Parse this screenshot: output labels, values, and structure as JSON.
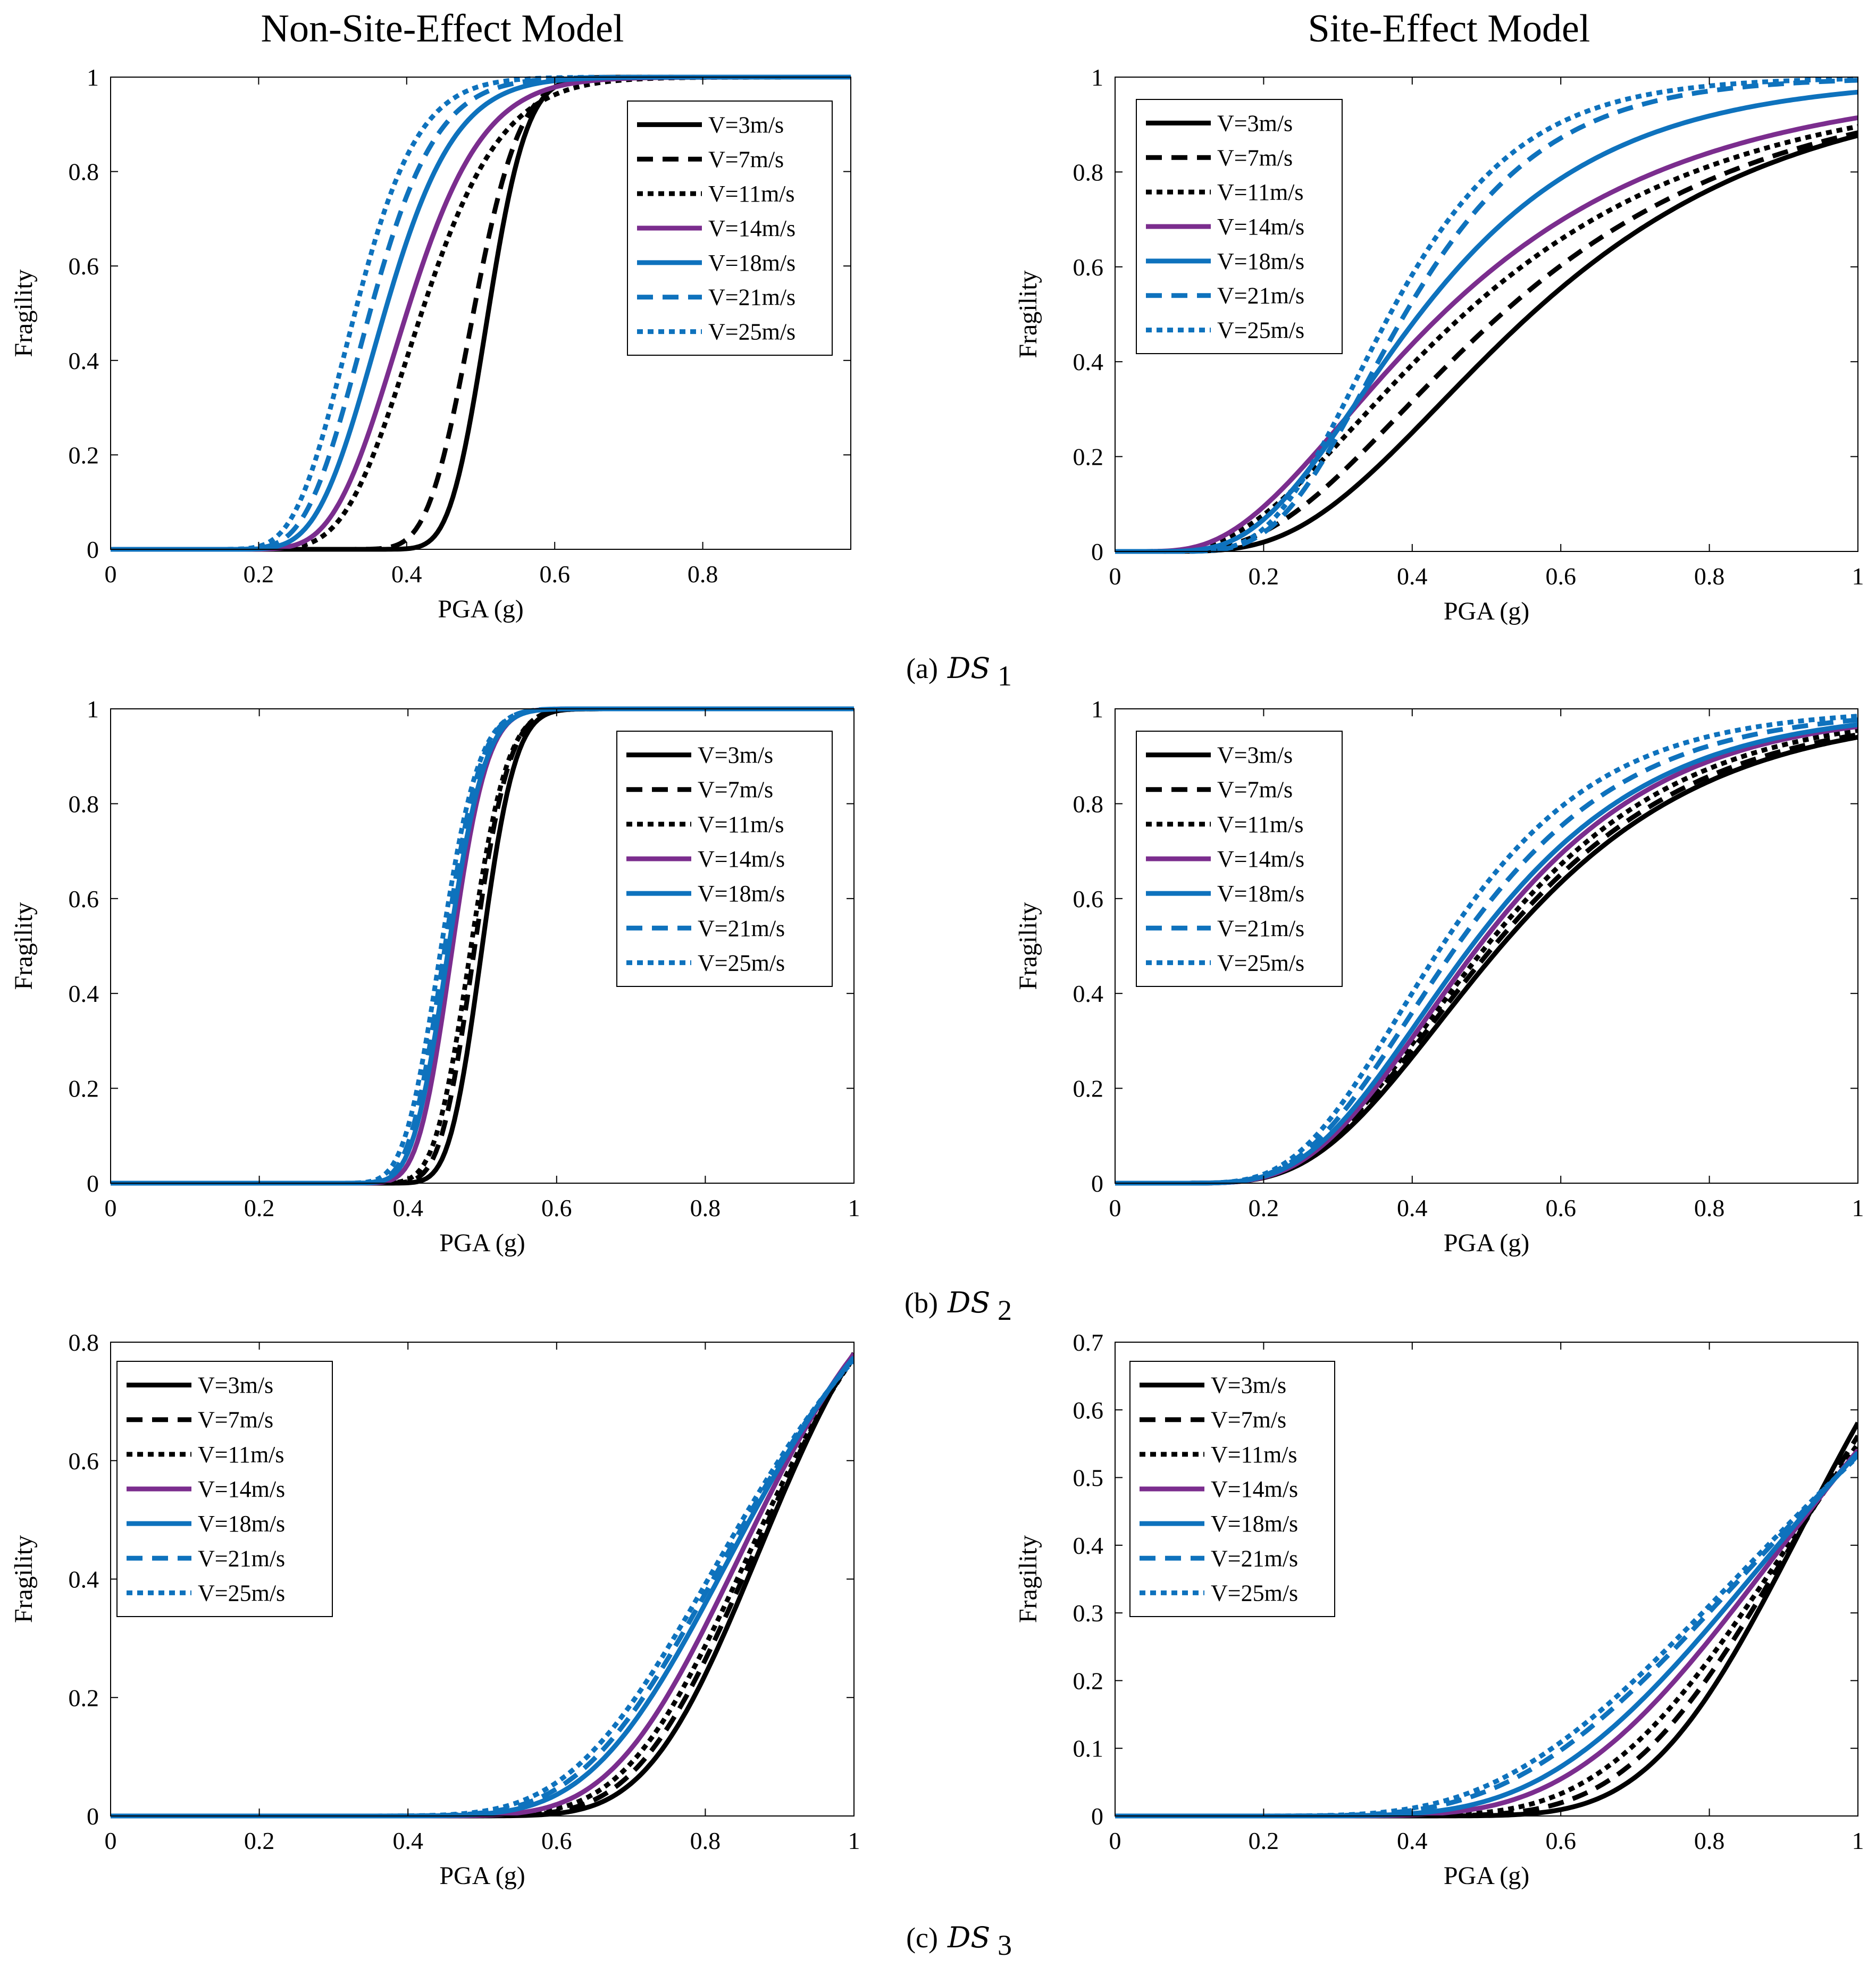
{
  "columns": [
    "Non-Site-Effect Model",
    "Site-Effect Model"
  ],
  "colors": {
    "black": "#000000",
    "purple": "#7B2D8E",
    "blue": "#0E72BD"
  },
  "captions": [
    {
      "letter": "(a)",
      "ds": "DS",
      "sub": "1"
    },
    {
      "letter": "(b)",
      "ds": "DS",
      "sub": "2"
    },
    {
      "letter": "(c)",
      "ds": "DS",
      "sub": "3"
    }
  ],
  "chart_data": [
    {
      "type": "line",
      "title": "Non-Site-Effect Model",
      "xlabel": "PGA (g)",
      "ylabel": "Fragility",
      "xlim": [
        0,
        1
      ],
      "ylim": [
        0,
        1
      ],
      "xticks": [
        "0",
        "0.2",
        "0.4",
        "0.6",
        "0.8"
      ],
      "yticks": [
        "0",
        "0.2",
        "0.4",
        "0.6",
        "0.8",
        "1"
      ],
      "legend_position": "top-right",
      "series": [
        {
          "name": "V=3m/s",
          "color": "black",
          "style": "solid",
          "median": 0.51,
          "beta": 0.08
        },
        {
          "name": "V=7m/s",
          "color": "black",
          "style": "dashed",
          "median": 0.49,
          "beta": 0.1
        },
        {
          "name": "V=11m/s",
          "color": "black",
          "style": "dotted",
          "median": 0.42,
          "beta": 0.2
        },
        {
          "name": "V=14m/s",
          "color": "purple",
          "style": "solid",
          "median": 0.4,
          "beta": 0.2
        },
        {
          "name": "V=18m/s",
          "color": "blue",
          "style": "solid",
          "median": 0.37,
          "beta": 0.2
        },
        {
          "name": "V=21m/s",
          "color": "blue",
          "style": "dashed",
          "median": 0.35,
          "beta": 0.2
        },
        {
          "name": "V=25m/s",
          "color": "blue",
          "style": "dotted",
          "median": 0.33,
          "beta": 0.2
        }
      ]
    },
    {
      "type": "line",
      "title": "Site-Effect Model",
      "xlabel": "PGA (g)",
      "ylabel": "Fragility",
      "xlim": [
        0,
        1
      ],
      "ylim": [
        0,
        1
      ],
      "xticks": [
        "0",
        "0.2",
        "0.4",
        "0.6",
        "0.8",
        "1"
      ],
      "yticks": [
        "0",
        "0.2",
        "0.4",
        "0.6",
        "0.8",
        "1"
      ],
      "legend_position": "top-left",
      "series": [
        {
          "name": "V=3m/s",
          "color": "black",
          "style": "solid",
          "median": 0.56,
          "beta": 0.5
        },
        {
          "name": "V=7m/s",
          "color": "black",
          "style": "dashed",
          "median": 0.52,
          "beta": 0.55
        },
        {
          "name": "V=11m/s",
          "color": "black",
          "style": "dotted",
          "median": 0.47,
          "beta": 0.6
        },
        {
          "name": "V=14m/s",
          "color": "purple",
          "style": "solid",
          "median": 0.44,
          "beta": 0.6
        },
        {
          "name": "V=18m/s",
          "color": "blue",
          "style": "solid",
          "median": 0.41,
          "beta": 0.48
        },
        {
          "name": "V=21m/s",
          "color": "blue",
          "style": "dashed",
          "median": 0.39,
          "beta": 0.38
        },
        {
          "name": "V=25m/s",
          "color": "blue",
          "style": "dotted",
          "median": 0.37,
          "beta": 0.37
        }
      ]
    },
    {
      "type": "line",
      "title": "",
      "xlabel": "PGA (g)",
      "ylabel": "Fragility",
      "xlim": [
        0,
        1
      ],
      "ylim": [
        0,
        1
      ],
      "xticks": [
        "0",
        "0.2",
        "0.4",
        "0.6",
        "0.8",
        "1"
      ],
      "yticks": [
        "0",
        "0.2",
        "0.4",
        "0.6",
        "0.8",
        "1"
      ],
      "legend_position": "top-right",
      "series": [
        {
          "name": "V=3m/s",
          "color": "black",
          "style": "solid",
          "median": 0.5,
          "beta": 0.07
        },
        {
          "name": "V=7m/s",
          "color": "black",
          "style": "dashed",
          "median": 0.49,
          "beta": 0.075
        },
        {
          "name": "V=11m/s",
          "color": "black",
          "style": "dotted",
          "median": 0.485,
          "beta": 0.08
        },
        {
          "name": "V=14m/s",
          "color": "purple",
          "style": "solid",
          "median": 0.46,
          "beta": 0.08
        },
        {
          "name": "V=18m/s",
          "color": "blue",
          "style": "solid",
          "median": 0.455,
          "beta": 0.085
        },
        {
          "name": "V=21m/s",
          "color": "blue",
          "style": "dashed",
          "median": 0.45,
          "beta": 0.085
        },
        {
          "name": "V=25m/s",
          "color": "blue",
          "style": "dotted",
          "median": 0.445,
          "beta": 0.09
        }
      ]
    },
    {
      "type": "line",
      "title": "",
      "xlabel": "PGA (g)",
      "ylabel": "Fragility",
      "xlim": [
        0,
        1
      ],
      "ylim": [
        0,
        1
      ],
      "xticks": [
        "0",
        "0.2",
        "0.4",
        "0.6",
        "0.8",
        "1"
      ],
      "yticks": [
        "0",
        "0.2",
        "0.4",
        "0.6",
        "0.8",
        "1"
      ],
      "legend_position": "top-left",
      "series": [
        {
          "name": "V=3m/s",
          "color": "black",
          "style": "solid",
          "median": 0.52,
          "beta": 0.42
        },
        {
          "name": "V=7m/s",
          "color": "black",
          "style": "dashed",
          "median": 0.51,
          "beta": 0.42
        },
        {
          "name": "V=11m/s",
          "color": "black",
          "style": "dotted",
          "median": 0.5,
          "beta": 0.41
        },
        {
          "name": "V=14m/s",
          "color": "purple",
          "style": "solid",
          "median": 0.49,
          "beta": 0.4
        },
        {
          "name": "V=18m/s",
          "color": "blue",
          "style": "solid",
          "median": 0.48,
          "beta": 0.4
        },
        {
          "name": "V=21m/s",
          "color": "blue",
          "style": "dashed",
          "median": 0.46,
          "beta": 0.39
        },
        {
          "name": "V=25m/s",
          "color": "blue",
          "style": "dotted",
          "median": 0.44,
          "beta": 0.38
        }
      ]
    },
    {
      "type": "line",
      "title": "",
      "xlabel": "PGA (g)",
      "ylabel": "Fragility",
      "xlim": [
        0,
        1
      ],
      "ylim": [
        0,
        0.8
      ],
      "xticks": [
        "0",
        "0.2",
        "0.4",
        "0.6",
        "0.8",
        "1"
      ],
      "yticks": [
        "0",
        "0.2",
        "0.4",
        "0.6",
        "0.8"
      ],
      "legend_position": "top-left",
      "series": [
        {
          "name": "V=3m/s",
          "color": "black",
          "style": "solid",
          "median": 0.89,
          "beta": 0.15
        },
        {
          "name": "V=7m/s",
          "color": "black",
          "style": "dashed",
          "median": 0.885,
          "beta": 0.16
        },
        {
          "name": "V=11m/s",
          "color": "black",
          "style": "dotted",
          "median": 0.88,
          "beta": 0.17
        },
        {
          "name": "V=14m/s",
          "color": "purple",
          "style": "solid",
          "median": 0.87,
          "beta": 0.18
        },
        {
          "name": "V=18m/s",
          "color": "blue",
          "style": "solid",
          "median": 0.86,
          "beta": 0.2
        },
        {
          "name": "V=21m/s",
          "color": "blue",
          "style": "dashed",
          "median": 0.855,
          "beta": 0.21
        },
        {
          "name": "V=25m/s",
          "color": "blue",
          "style": "dotted",
          "median": 0.85,
          "beta": 0.22
        }
      ]
    },
    {
      "type": "line",
      "title": "",
      "xlabel": "PGA (g)",
      "ylabel": "Fragility",
      "xlim": [
        0,
        1
      ],
      "ylim": [
        0,
        0.7
      ],
      "xticks": [
        "0",
        "0.2",
        "0.4",
        "0.6",
        "0.8",
        "1"
      ],
      "yticks": [
        "0",
        "0.1",
        "0.2",
        "0.3",
        "0.4",
        "0.5",
        "0.6",
        "0.7"
      ],
      "legend_position": "top-left",
      "series": [
        {
          "name": "V=3m/s",
          "color": "black",
          "style": "solid",
          "median": 0.96,
          "beta": 0.2
        },
        {
          "name": "V=7m/s",
          "color": "black",
          "style": "dashed",
          "median": 0.965,
          "beta": 0.23
        },
        {
          "name": "V=11m/s",
          "color": "black",
          "style": "dotted",
          "median": 0.968,
          "beta": 0.26
        },
        {
          "name": "V=14m/s",
          "color": "purple",
          "style": "solid",
          "median": 0.97,
          "beta": 0.3
        },
        {
          "name": "V=18m/s",
          "color": "blue",
          "style": "solid",
          "median": 0.97,
          "beta": 0.33
        },
        {
          "name": "V=21m/s",
          "color": "blue",
          "style": "dashed",
          "median": 0.97,
          "beta": 0.37
        },
        {
          "name": "V=25m/s",
          "color": "blue",
          "style": "dotted",
          "median": 0.97,
          "beta": 0.39
        }
      ]
    }
  ]
}
